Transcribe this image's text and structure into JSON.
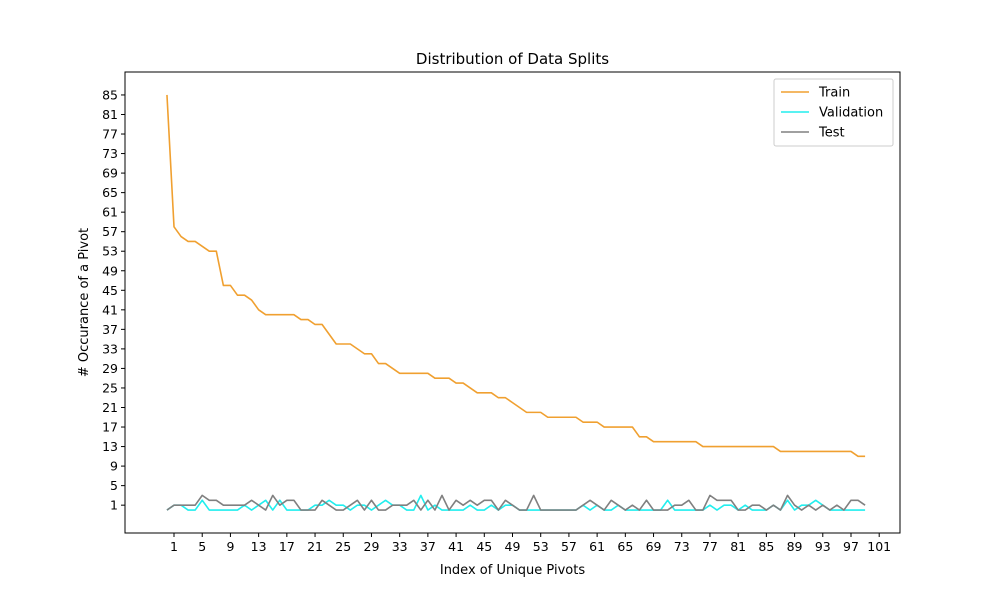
{
  "chart_data": {
    "type": "line",
    "title": "Distribution of Data Splits",
    "xlabel": "Index of Unique Pivots",
    "ylabel": "# Occurance of a Pivot",
    "xlim": [
      -5.95,
      103.95
    ],
    "ylim": [
      -4.7,
      89.7
    ],
    "xticks": [
      1,
      5,
      9,
      13,
      17,
      21,
      25,
      29,
      33,
      37,
      41,
      45,
      49,
      53,
      57,
      61,
      65,
      69,
      73,
      77,
      81,
      85,
      89,
      93,
      97,
      101
    ],
    "yticks": [
      1,
      5,
      9,
      13,
      17,
      21,
      25,
      29,
      33,
      37,
      41,
      45,
      49,
      53,
      57,
      61,
      65,
      69,
      73,
      77,
      81,
      85
    ],
    "grid": false,
    "legend_position": "top-right",
    "series": [
      {
        "name": "Train",
        "color": "#f0a030",
        "values": [
          85,
          58,
          56,
          55,
          55,
          54,
          53,
          53,
          46,
          46,
          44,
          44,
          43,
          41,
          40,
          40,
          40,
          40,
          40,
          39,
          39,
          38,
          38,
          36,
          34,
          34,
          34,
          33,
          32,
          32,
          30,
          30,
          29,
          28,
          28,
          28,
          28,
          28,
          27,
          27,
          27,
          26,
          26,
          25,
          24,
          24,
          24,
          23,
          23,
          22,
          21,
          20,
          20,
          20,
          19,
          19,
          19,
          19,
          19,
          18,
          18,
          18,
          17,
          17,
          17,
          17,
          17,
          15,
          15,
          14,
          14,
          14,
          14,
          14,
          14,
          14,
          13,
          13,
          13,
          13,
          13,
          13,
          13,
          13,
          13,
          13,
          13,
          12,
          12,
          12,
          12,
          12,
          12,
          12,
          12,
          12,
          12,
          12,
          11,
          11
        ]
      },
      {
        "name": "Validation",
        "color": "#22eeee",
        "values": [
          0,
          1,
          1,
          0,
          0,
          2,
          0,
          0,
          0,
          0,
          0,
          1,
          0,
          1,
          2,
          0,
          2,
          0,
          0,
          0,
          0,
          1,
          1,
          2,
          1,
          1,
          0,
          1,
          1,
          0,
          1,
          2,
          1,
          1,
          0,
          0,
          3,
          0,
          1,
          0,
          0,
          0,
          0,
          1,
          0,
          0,
          1,
          0,
          1,
          1,
          0,
          0,
          0,
          0,
          0,
          0,
          0,
          0,
          0,
          1,
          0,
          1,
          0,
          0,
          1,
          0,
          0,
          0,
          0,
          0,
          0,
          2,
          0,
          0,
          0,
          0,
          0,
          1,
          0,
          1,
          1,
          0,
          1,
          0,
          0,
          0,
          1,
          0,
          2,
          0,
          1,
          1,
          2,
          1,
          0,
          0,
          0,
          0,
          0,
          0
        ]
      },
      {
        "name": "Test",
        "color": "#808080",
        "values": [
          0,
          1,
          1,
          1,
          1,
          3,
          2,
          2,
          1,
          1,
          1,
          1,
          2,
          1,
          0,
          3,
          1,
          2,
          2,
          0,
          0,
          0,
          2,
          1,
          0,
          0,
          1,
          2,
          0,
          2,
          0,
          0,
          1,
          1,
          1,
          2,
          0,
          2,
          0,
          3,
          0,
          2,
          1,
          2,
          1,
          2,
          2,
          0,
          2,
          1,
          0,
          0,
          3,
          0,
          0,
          0,
          0,
          0,
          0,
          1,
          2,
          1,
          0,
          2,
          1,
          0,
          1,
          0,
          2,
          0,
          0,
          0,
          1,
          1,
          2,
          0,
          0,
          3,
          2,
          2,
          2,
          0,
          0,
          1,
          1,
          0,
          1,
          0,
          3,
          1,
          0,
          1,
          0,
          1,
          0,
          1,
          0,
          2,
          2,
          1
        ]
      }
    ]
  }
}
